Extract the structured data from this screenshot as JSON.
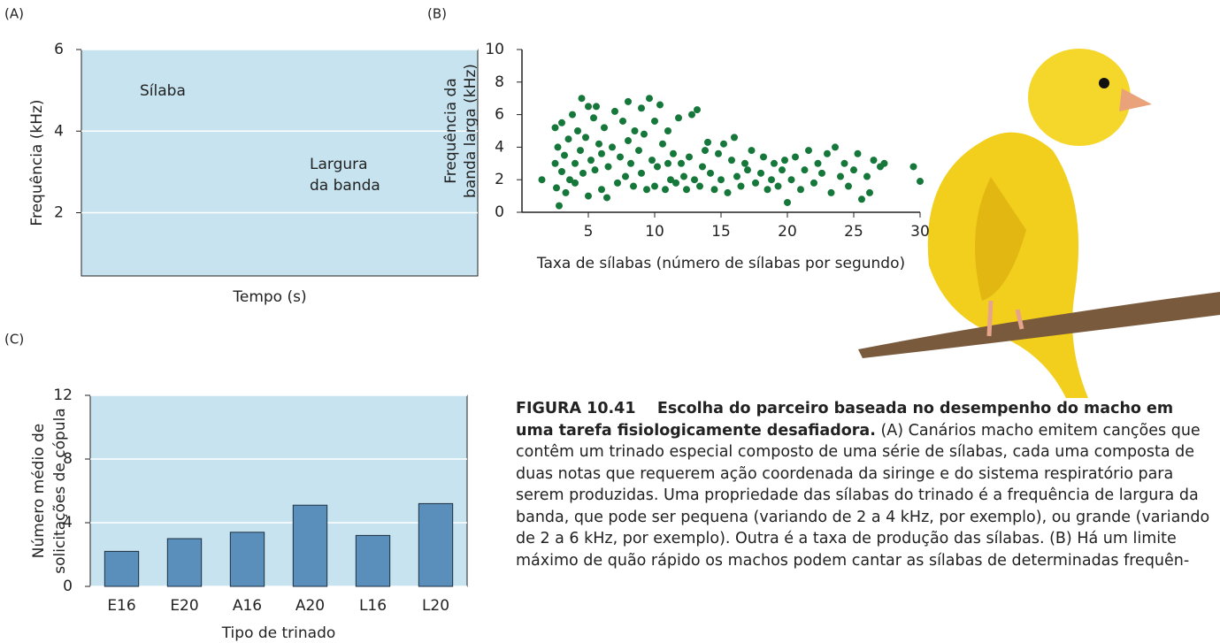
{
  "chart_data": [
    {
      "type": "spectrogram",
      "label": "(A)",
      "ylabel": "Frequência (kHz)",
      "xlabel": "Tempo (s)",
      "ylim": [
        0.45,
        6
      ],
      "yticks": [
        2,
        4,
        6
      ],
      "grid": true,
      "background": "#c6e3ef",
      "annotations": [
        "Sílaba",
        "Largura",
        "da banda"
      ]
    },
    {
      "type": "scatter",
      "label": "(B)",
      "ylabel": [
        "Frequência da",
        "banda larga (kHz)"
      ],
      "xlabel": "Taxa de sílabas (número de sílabas por segundo)",
      "xlim": [
        0,
        30
      ],
      "xticks": [
        5,
        10,
        15,
        20,
        25,
        30
      ],
      "ylim": [
        0,
        10
      ],
      "yticks": [
        0,
        2,
        4,
        6,
        8,
        10
      ],
      "color": "#16773a",
      "x": [
        1.5,
        2.5,
        2.5,
        2.6,
        2.7,
        2.8,
        3,
        3,
        3.2,
        3.3,
        3.5,
        3.6,
        3.8,
        4,
        4,
        4.2,
        4.4,
        4.5,
        4.6,
        4.8,
        5,
        5,
        5.2,
        5.4,
        5.5,
        5.6,
        5.8,
        6,
        6,
        6.2,
        6.4,
        6.5,
        6.8,
        7,
        7.2,
        7.4,
        7.6,
        7.8,
        8,
        8,
        8.2,
        8.4,
        8.5,
        8.8,
        9,
        9,
        9.2,
        9.4,
        9.6,
        9.8,
        10,
        10,
        10.2,
        10.4,
        10.6,
        10.8,
        11,
        11,
        11.2,
        11.4,
        11.6,
        11.8,
        12,
        12.2,
        12.4,
        12.6,
        12.8,
        13,
        13.2,
        13.4,
        13.6,
        13.8,
        14,
        14.2,
        14.5,
        14.8,
        15,
        15.2,
        15.5,
        15.8,
        16,
        16.2,
        16.5,
        16.8,
        17,
        17.3,
        17.6,
        18,
        18.2,
        18.5,
        18.8,
        19,
        19.3,
        19.6,
        19.8,
        20,
        20.3,
        20.6,
        21,
        21.3,
        21.6,
        22,
        22.3,
        22.6,
        23,
        23.3,
        23.6,
        24,
        24.3,
        24.6,
        25,
        25.3,
        25.6,
        26,
        26.2,
        26.5,
        27,
        27.3,
        29.5,
        30
      ],
      "values": [
        2.0,
        5.2,
        3.0,
        1.5,
        4.0,
        0.4,
        2.5,
        5.5,
        3.5,
        1.2,
        4.5,
        2.0,
        6.0,
        3.0,
        1.8,
        5.0,
        3.8,
        7.0,
        2.4,
        4.6,
        6.5,
        1.0,
        3.2,
        5.8,
        2.6,
        6.5,
        4.2,
        1.4,
        3.6,
        5.2,
        0.9,
        2.8,
        4.0,
        6.2,
        1.8,
        3.4,
        5.6,
        2.2,
        6.8,
        4.4,
        3.0,
        1.6,
        5.0,
        3.8,
        6.4,
        2.4,
        4.8,
        1.4,
        7.0,
        3.2,
        5.6,
        1.6,
        2.8,
        6.6,
        4.2,
        1.4,
        3.0,
        5.0,
        2.0,
        3.6,
        1.8,
        5.8,
        3.0,
        2.2,
        1.4,
        3.4,
        6.0,
        2.0,
        6.3,
        1.6,
        2.8,
        3.8,
        4.3,
        2.4,
        1.4,
        3.6,
        2.0,
        4.2,
        1.2,
        3.2,
        4.6,
        2.2,
        1.6,
        3.0,
        2.6,
        3.8,
        1.8,
        2.4,
        3.4,
        1.4,
        2.0,
        3.0,
        1.6,
        2.6,
        3.2,
        0.6,
        2.0,
        3.4,
        1.4,
        2.6,
        3.8,
        1.8,
        3.0,
        2.4,
        3.6,
        1.2,
        4.0,
        2.2,
        3.0,
        1.6,
        2.6,
        3.6,
        0.8,
        2.2,
        1.2,
        3.2,
        2.8,
        3.0,
        2.8,
        1.9
      ]
    },
    {
      "type": "bar",
      "label": "(C)",
      "ylabel": [
        "Número médio de",
        "solicitações de cópula"
      ],
      "xlabel": "Tipo de trinado",
      "categories": [
        "E16",
        "E20",
        "A16",
        "A20",
        "L16",
        "L20"
      ],
      "values": [
        2.2,
        3.0,
        3.4,
        5.1,
        3.2,
        5.2
      ],
      "ylim": [
        0,
        12
      ],
      "yticks": [
        0,
        4,
        8,
        12
      ],
      "grid": true,
      "color": "#5b8fbb",
      "background": "#c6e3ef"
    }
  ],
  "caption": {
    "figure": "FIGURA 10.41",
    "title": "Escolha do parceiro baseada no desempenho do macho em uma tarefa fisiologicamente desafiadora.",
    "text": "(A) Canários macho emitem canções que contêm um trinado especial composto de uma série de sílabas, cada uma composta de duas notas que requerem ação coordenada da siringe e do sistema respiratório para serem produzidas. Uma propriedade das sílabas do trinado é a frequência de largura da banda, que pode ser pequena (variando de 2 a 4 kHz, por exemplo), ou grande (variando de 2 a 6 kHz, por exemplo). Outra é a taxa de produção das sílabas. (B) Há um limite máximo de quão rápido os machos podem cantar as sílabas de determinadas frequên-"
  }
}
